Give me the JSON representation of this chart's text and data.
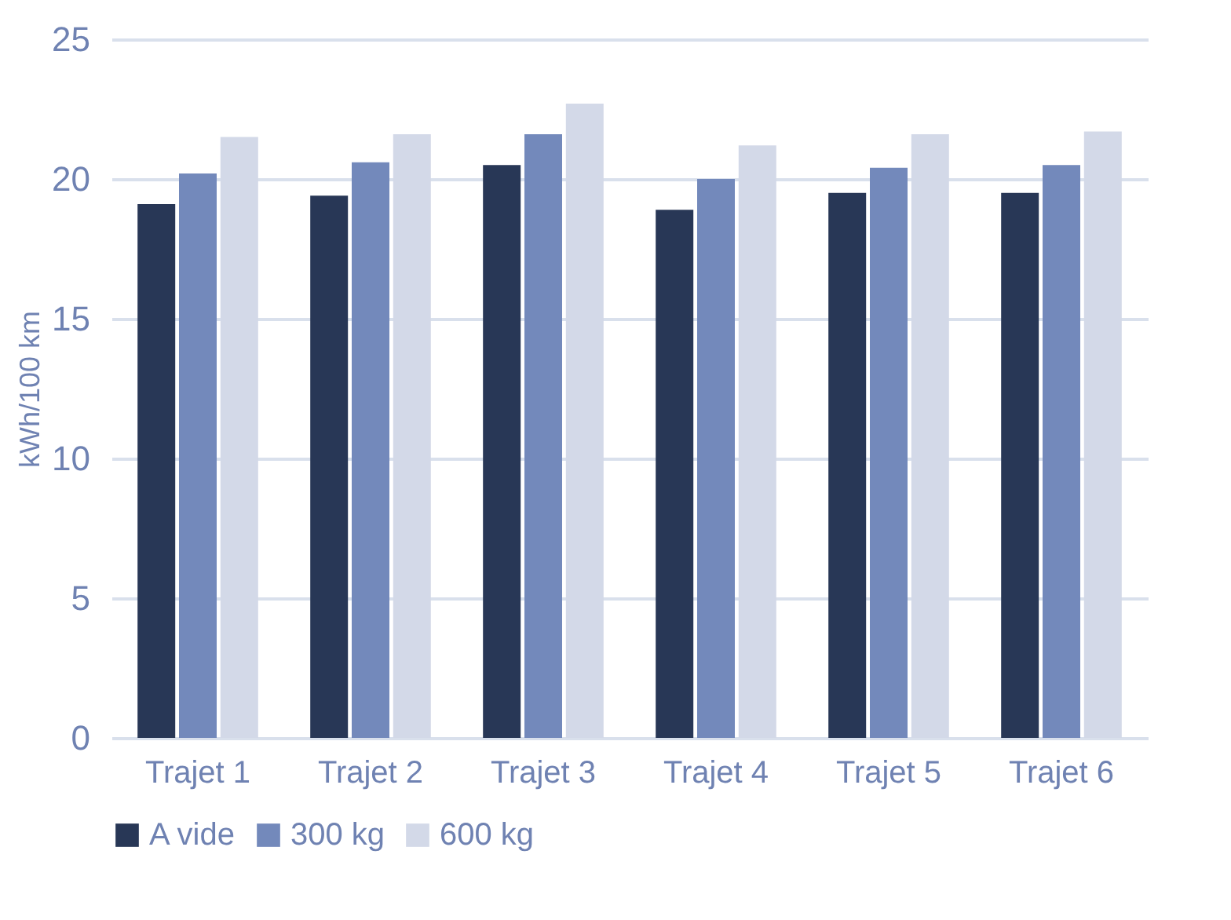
{
  "chart_data": {
    "type": "bar",
    "ylabel": "kWh/100 km",
    "categories": [
      "Trajet 1",
      "Trajet 2",
      "Trajet 3",
      "Trajet 4",
      "Trajet 5",
      "Trajet 6"
    ],
    "series": [
      {
        "name": "A vide",
        "color": "#283756",
        "values": [
          19.1,
          19.4,
          20.5,
          18.9,
          19.5,
          19.5
        ]
      },
      {
        "name": "300 kg",
        "color": "#7389bb",
        "values": [
          20.2,
          20.6,
          21.6,
          20.0,
          20.4,
          20.5
        ]
      },
      {
        "name": "600 kg",
        "color": "#d3d9e8",
        "values": [
          21.5,
          21.6,
          22.7,
          21.2,
          21.6,
          21.7
        ]
      }
    ],
    "ylim": [
      0,
      25
    ],
    "yticks": [
      0,
      5,
      10,
      15,
      20,
      25
    ],
    "grid": "y",
    "legend": "bottom"
  }
}
